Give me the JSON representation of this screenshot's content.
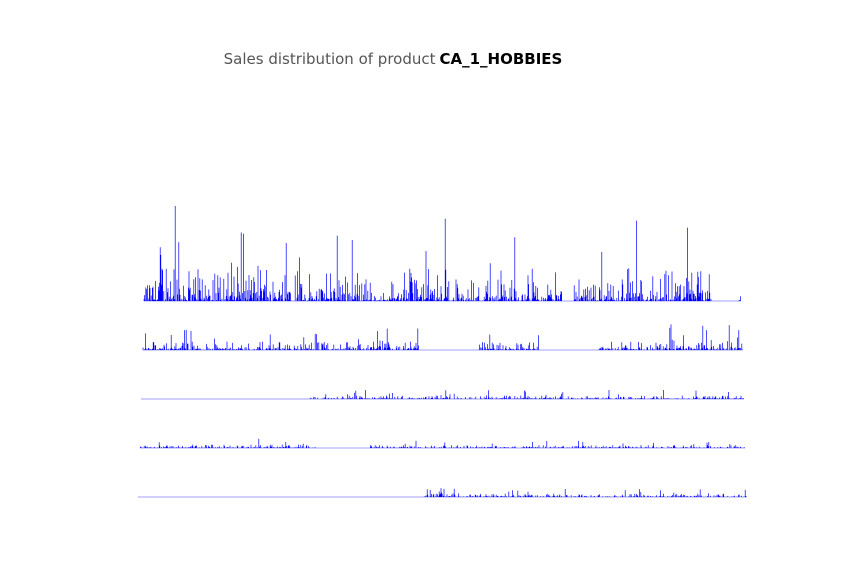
{
  "title": {
    "prefix": "Sales distribution of product",
    "product": "CA_1_HOBBIES"
  },
  "chart_data": {
    "type": "line",
    "title": "Sales distribution of product CA_1_HOBBIES",
    "xlabel": "",
    "ylabel": "",
    "grid": false,
    "legend": "none",
    "axes_visible": false,
    "panel_count": 5,
    "colors": {
      "spike": "#0000ff",
      "baseline": "#8080ff"
    },
    "series": [
      {
        "profile": [
          [
            0.0,
            0.02,
            0.08,
            0.25
          ],
          [
            0.02,
            0.08,
            0.12,
            0.65
          ],
          [
            0.08,
            0.3,
            0.1,
            0.45
          ],
          [
            0.3,
            0.38,
            0.08,
            0.35
          ],
          [
            0.38,
            0.42,
            0.02,
            0.1
          ],
          [
            0.42,
            0.52,
            0.1,
            0.35
          ],
          [
            0.52,
            0.58,
            0.05,
            0.25
          ],
          [
            0.58,
            0.7,
            0.08,
            0.28
          ],
          [
            0.7,
            0.72,
            0.0,
            0.0
          ],
          [
            0.72,
            0.8,
            0.05,
            0.2
          ],
          [
            0.8,
            0.95,
            0.08,
            0.35
          ],
          [
            0.95,
            0.995,
            0.0,
            0.0
          ],
          [
            0.995,
            1.0,
            0.05,
            0.1
          ]
        ]
      },
      {
        "profile": [
          [
            0.0,
            0.31,
            0.1,
            0.25
          ],
          [
            0.31,
            0.46,
            0.1,
            0.3
          ],
          [
            0.46,
            0.56,
            0.0,
            0.0
          ],
          [
            0.56,
            0.66,
            0.1,
            0.25
          ],
          [
            0.66,
            0.76,
            0.0,
            0.0
          ],
          [
            0.76,
            1.0,
            0.12,
            0.3
          ]
        ]
      },
      {
        "profile": [
          [
            0.0,
            0.28,
            0.0,
            0.0
          ],
          [
            0.28,
            0.33,
            0.05,
            0.15
          ],
          [
            0.33,
            1.0,
            0.08,
            0.22
          ]
        ]
      },
      {
        "profile": [
          [
            0.0,
            0.29,
            0.08,
            0.22
          ],
          [
            0.29,
            0.38,
            0.0,
            0.0
          ],
          [
            0.38,
            1.0,
            0.06,
            0.18
          ]
        ]
      },
      {
        "profile": [
          [
            0.0,
            0.47,
            0.0,
            0.0
          ],
          [
            0.47,
            1.0,
            0.06,
            0.22
          ]
        ]
      }
    ]
  }
}
